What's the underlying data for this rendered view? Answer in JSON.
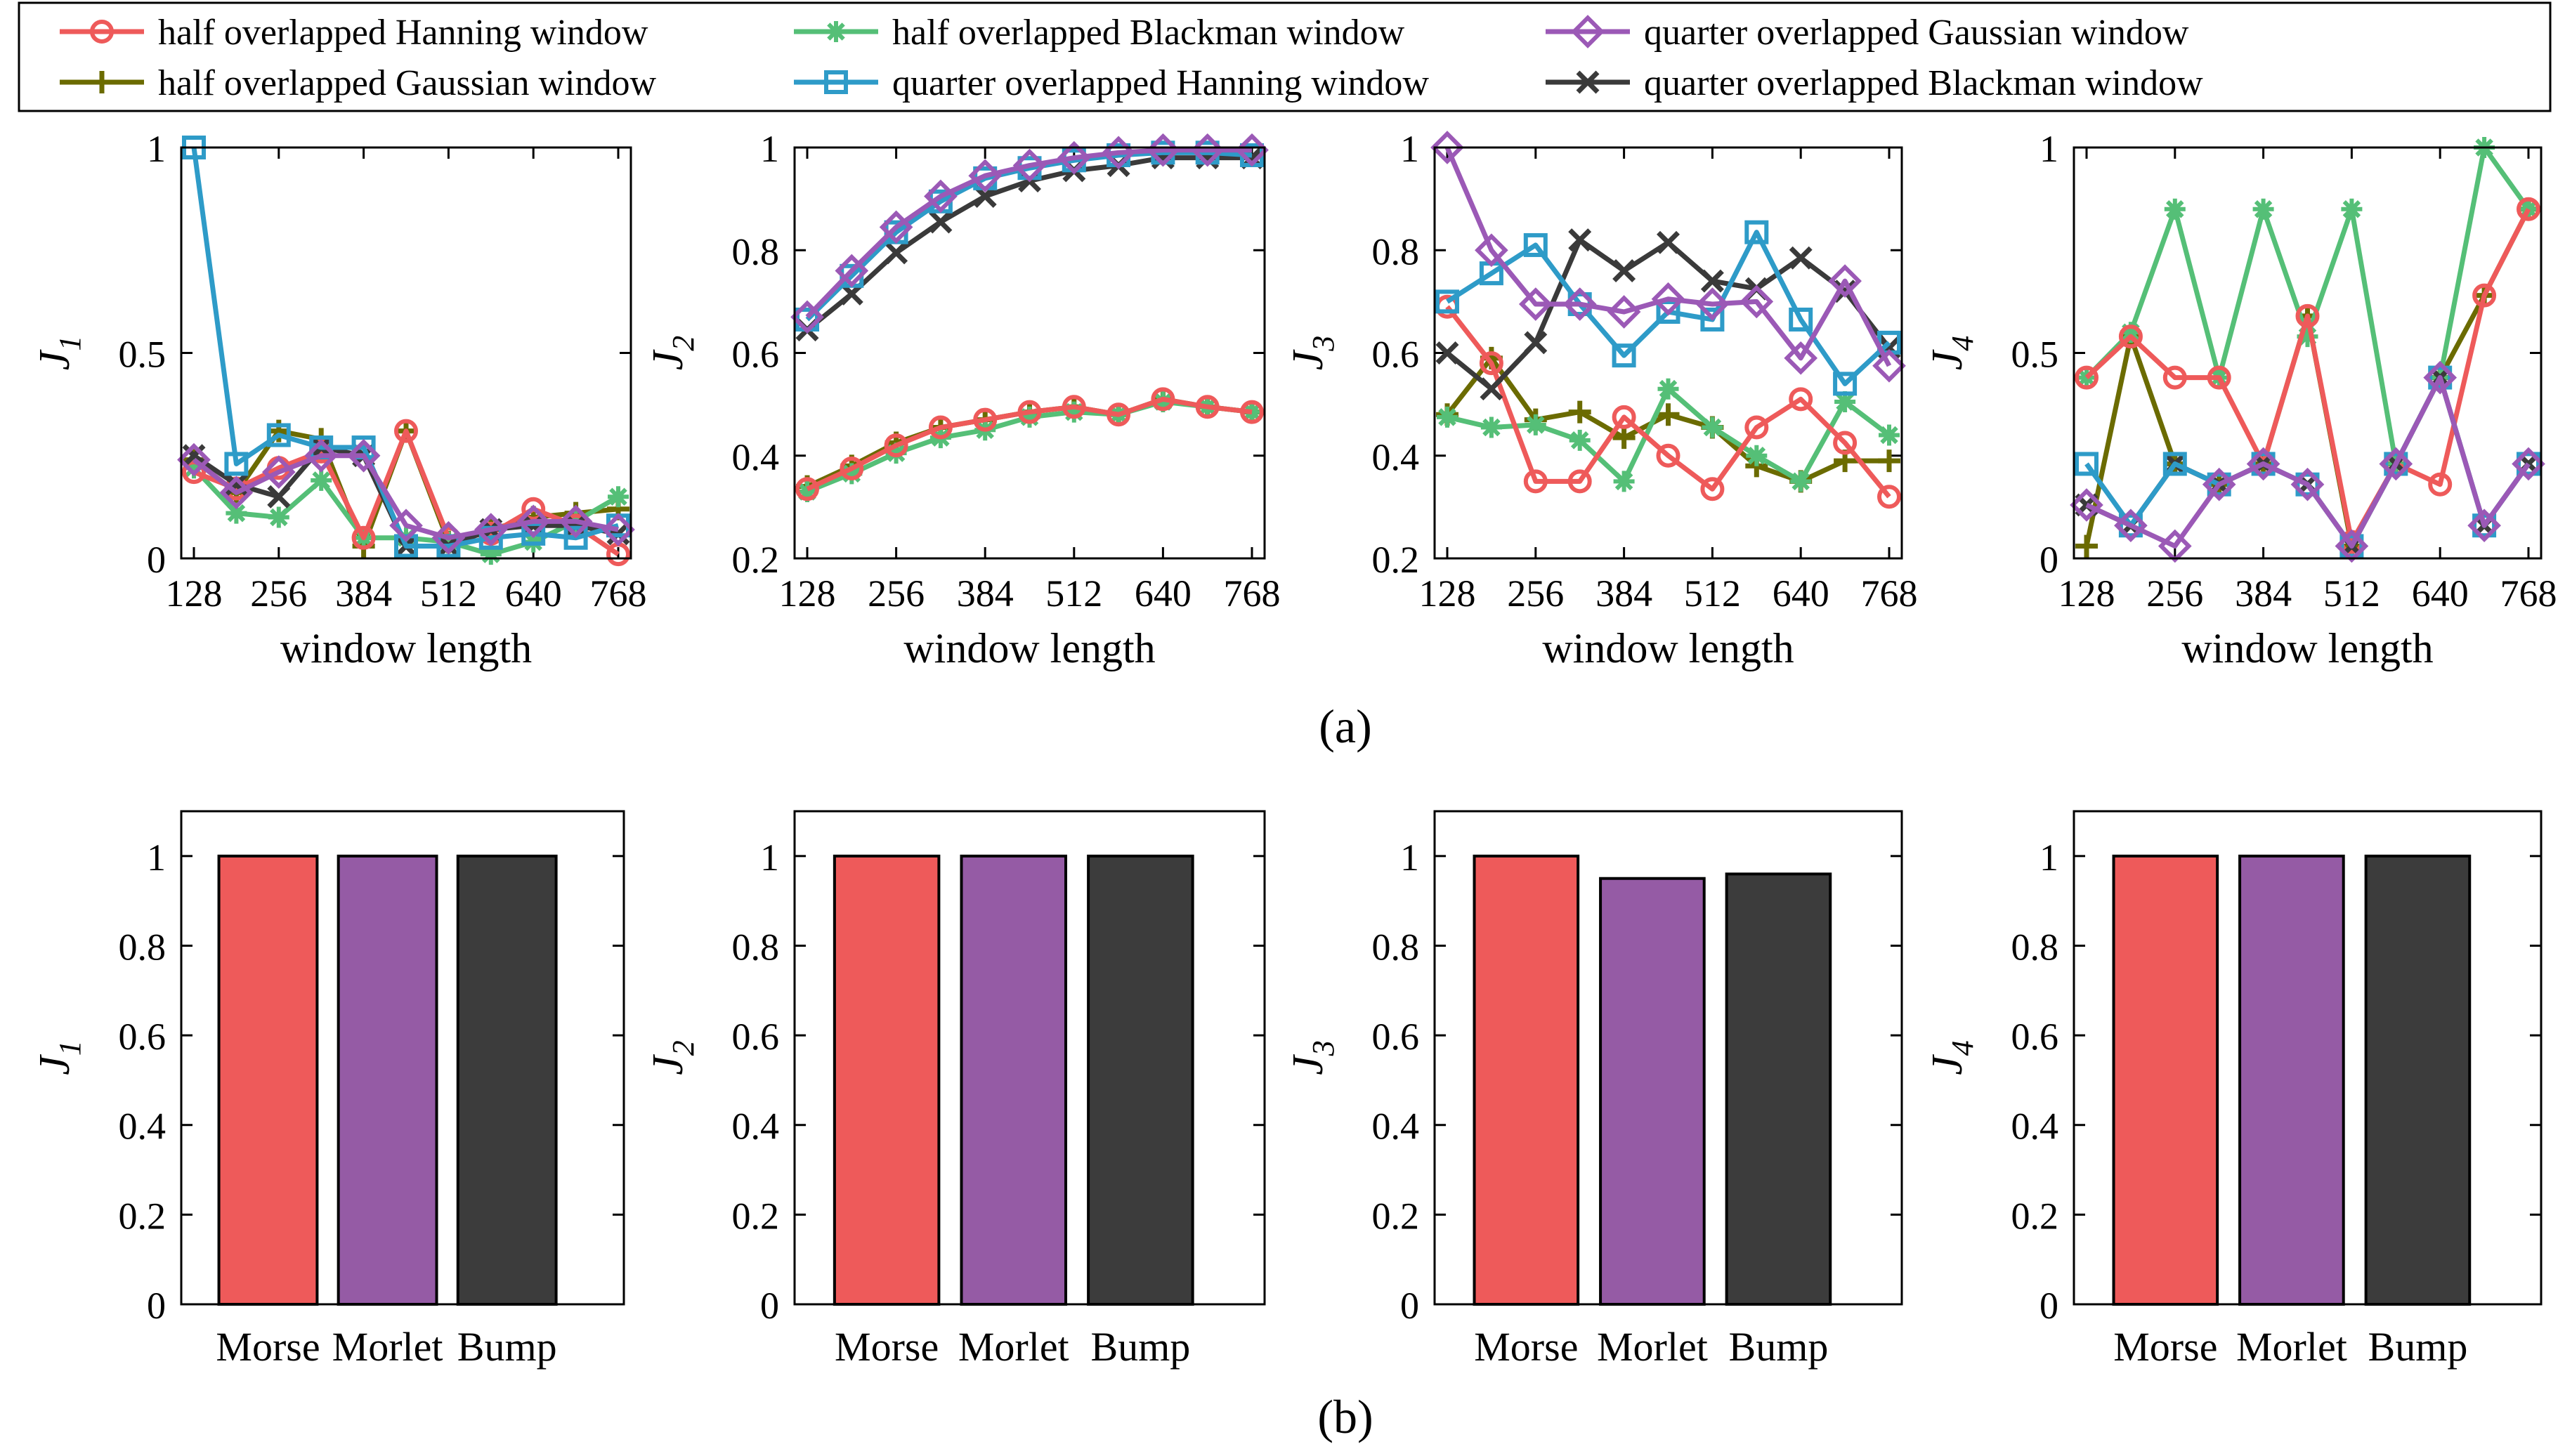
{
  "legend": {
    "entries": [
      {
        "label": "half overlapped Hanning window",
        "color": "#EE5A5A",
        "marker": "circle"
      },
      {
        "label": "half overlapped Blackman window",
        "color": "#55BF77",
        "marker": "asterisk"
      },
      {
        "label": "quarter overlapped Gaussian window",
        "color": "#9B59B6",
        "marker": "diamond"
      },
      {
        "label": "half overlapped Gaussian window",
        "color": "#6B6B00",
        "marker": "plus"
      },
      {
        "label": "quarter overlapped Hanning window",
        "color": "#2E9BC8",
        "marker": "square"
      },
      {
        "label": "quarter overlapped Blackman window",
        "color": "#3A3A3A",
        "marker": "x"
      }
    ]
  },
  "captions": {
    "a": "(a)",
    "b": "(b)"
  },
  "chart_data": [
    {
      "type": "line",
      "title": "",
      "xlabel": "window length",
      "ylabel": "J1",
      "ylabel_main": "J",
      "ylabel_sub": "1",
      "x": [
        128,
        192,
        256,
        320,
        384,
        448,
        512,
        576,
        640,
        704,
        768
      ],
      "xlim": [
        128,
        768
      ],
      "ylim": [
        0,
        1
      ],
      "xticks": [
        "128",
        "256",
        "384",
        "512",
        "640",
        "768"
      ],
      "yticks": [
        "0",
        "0.5",
        "1"
      ],
      "series": [
        {
          "name": "half overlapped Hanning window",
          "values": [
            0.21,
            0.17,
            0.22,
            0.26,
            0.05,
            0.31,
            0.05,
            0.06,
            0.12,
            0.08,
            0.01
          ]
        },
        {
          "name": "half overlapped Blackman window",
          "values": [
            0.22,
            0.11,
            0.1,
            0.19,
            0.05,
            0.05,
            0.04,
            0.01,
            0.04,
            0.09,
            0.15
          ]
        },
        {
          "name": "quarter overlapped Gaussian window",
          "values": [
            0.24,
            0.16,
            0.21,
            0.25,
            0.25,
            0.08,
            0.05,
            0.07,
            0.09,
            0.09,
            0.07
          ]
        },
        {
          "name": "half overlapped Gaussian window",
          "values": [
            0.24,
            0.16,
            0.31,
            0.29,
            0.03,
            0.31,
            0.04,
            0.07,
            0.1,
            0.11,
            0.12
          ]
        },
        {
          "name": "quarter overlapped Hanning window",
          "values": [
            1.0,
            0.23,
            0.3,
            0.27,
            0.27,
            0.03,
            0.03,
            0.05,
            0.06,
            0.05,
            0.08
          ]
        },
        {
          "name": "quarter overlapped Blackman window",
          "values": [
            0.25,
            0.18,
            0.15,
            0.27,
            0.25,
            0.03,
            0.03,
            0.07,
            0.08,
            0.08,
            0.06
          ]
        }
      ]
    },
    {
      "type": "line",
      "title": "",
      "xlabel": "window length",
      "ylabel": "J2",
      "ylabel_main": "J",
      "ylabel_sub": "2",
      "x": [
        128,
        192,
        256,
        320,
        384,
        448,
        512,
        576,
        640,
        704,
        768
      ],
      "xlim": [
        128,
        768
      ],
      "ylim": [
        0.2,
        1
      ],
      "xticks": [
        "128",
        "256",
        "384",
        "512",
        "640",
        "768"
      ],
      "yticks": [
        "0.2",
        "0.4",
        "0.6",
        "0.8",
        "1"
      ],
      "series": [
        {
          "name": "half overlapped Hanning window",
          "values": [
            0.335,
            0.375,
            0.42,
            0.455,
            0.47,
            0.485,
            0.495,
            0.48,
            0.51,
            0.495,
            0.485
          ]
        },
        {
          "name": "half overlapped Blackman window",
          "values": [
            0.33,
            0.365,
            0.405,
            0.435,
            0.45,
            0.475,
            0.485,
            0.48,
            0.505,
            0.495,
            0.485
          ]
        },
        {
          "name": "quarter overlapped Gaussian window",
          "values": [
            0.67,
            0.76,
            0.845,
            0.905,
            0.945,
            0.965,
            0.98,
            0.99,
            0.995,
            0.995,
            0.995
          ]
        },
        {
          "name": "half overlapped Gaussian window",
          "values": [
            0.34,
            0.38,
            0.425,
            0.455,
            0.47,
            0.485,
            0.495,
            0.48,
            0.51,
            0.495,
            0.485
          ]
        },
        {
          "name": "quarter overlapped Hanning window",
          "values": [
            0.665,
            0.75,
            0.835,
            0.895,
            0.94,
            0.96,
            0.975,
            0.985,
            0.99,
            0.99,
            0.985
          ]
        },
        {
          "name": "quarter overlapped Blackman window",
          "values": [
            0.645,
            0.715,
            0.795,
            0.855,
            0.905,
            0.935,
            0.955,
            0.965,
            0.98,
            0.98,
            0.98
          ]
        }
      ]
    },
    {
      "type": "line",
      "title": "",
      "xlabel": "window length",
      "ylabel": "J3",
      "ylabel_main": "J",
      "ylabel_sub": "3",
      "x": [
        128,
        192,
        256,
        320,
        384,
        448,
        512,
        576,
        640,
        704,
        768
      ],
      "xlim": [
        128,
        768
      ],
      "ylim": [
        0.2,
        1
      ],
      "xticks": [
        "128",
        "256",
        "384",
        "512",
        "640",
        "768"
      ],
      "yticks": [
        "0.2",
        "0.4",
        "0.6",
        "0.8",
        "1"
      ],
      "series": [
        {
          "name": "half overlapped Hanning window",
          "values": [
            0.69,
            0.58,
            0.35,
            0.35,
            0.475,
            0.4,
            0.335,
            0.455,
            0.51,
            0.425,
            0.32
          ]
        },
        {
          "name": "half overlapped Blackman window",
          "values": [
            0.475,
            0.455,
            0.46,
            0.43,
            0.35,
            0.53,
            0.455,
            0.4,
            0.35,
            0.505,
            0.44
          ]
        },
        {
          "name": "quarter overlapped Gaussian window",
          "values": [
            1.0,
            0.8,
            0.695,
            0.695,
            0.68,
            0.705,
            0.695,
            0.7,
            0.59,
            0.74,
            0.575
          ]
        },
        {
          "name": "half overlapped Gaussian window",
          "values": [
            0.48,
            0.59,
            0.47,
            0.485,
            0.435,
            0.48,
            0.455,
            0.38,
            0.35,
            0.39,
            0.39
          ]
        },
        {
          "name": "quarter overlapped Hanning window",
          "values": [
            0.7,
            0.755,
            0.81,
            0.695,
            0.595,
            0.68,
            0.665,
            0.835,
            0.665,
            0.54,
            0.62
          ]
        },
        {
          "name": "quarter overlapped Blackman window",
          "values": [
            0.6,
            0.53,
            0.62,
            0.82,
            0.76,
            0.815,
            0.74,
            0.725,
            0.785,
            0.72,
            0.61
          ]
        }
      ]
    },
    {
      "type": "line",
      "title": "",
      "xlabel": "window length",
      "ylabel": "J4",
      "ylabel_main": "J",
      "ylabel_sub": "4",
      "x": [
        128,
        192,
        256,
        320,
        384,
        448,
        512,
        576,
        640,
        704,
        768
      ],
      "xlim": [
        128,
        768
      ],
      "ylim": [
        0,
        1
      ],
      "xticks": [
        "128",
        "256",
        "384",
        "512",
        "640",
        "768"
      ],
      "yticks": [
        "0",
        "0.5",
        "1"
      ],
      "series": [
        {
          "name": "half overlapped Hanning window",
          "values": [
            0.44,
            0.54,
            0.44,
            0.44,
            0.23,
            0.59,
            0.04,
            0.23,
            0.18,
            0.64,
            0.85
          ]
        },
        {
          "name": "half overlapped Blackman window",
          "values": [
            0.44,
            0.55,
            0.85,
            0.44,
            0.85,
            0.54,
            0.85,
            0.23,
            0.44,
            1.0,
            0.85
          ]
        },
        {
          "name": "quarter overlapped Gaussian window",
          "values": [
            0.13,
            0.08,
            0.03,
            0.18,
            0.23,
            0.18,
            0.03,
            0.23,
            0.44,
            0.08,
            0.23
          ]
        },
        {
          "name": "half overlapped Gaussian window",
          "values": [
            0.03,
            0.54,
            0.23,
            0.18,
            0.23,
            0.59,
            0.03,
            0.23,
            0.44,
            0.64,
            0.85
          ]
        },
        {
          "name": "quarter overlapped Hanning window",
          "values": [
            0.23,
            0.08,
            0.23,
            0.18,
            0.23,
            0.18,
            0.03,
            0.23,
            0.44,
            0.08,
            0.23
          ]
        },
        {
          "name": "quarter overlapped Blackman window",
          "values": [
            0.13,
            0.08,
            0.23,
            0.18,
            0.23,
            0.18,
            0.03,
            0.23,
            0.44,
            0.08,
            0.23
          ]
        }
      ]
    },
    {
      "type": "bar",
      "title": "",
      "xlabel": "",
      "ylabel": "J1",
      "ylabel_main": "J",
      "ylabel_sub": "1",
      "categories": [
        "Morse",
        "Morlet",
        "Bump"
      ],
      "values": [
        1.0,
        1.0,
        1.0
      ],
      "bar_colors": [
        "#EE5A5A",
        "#955BA5",
        "#3C3C3C"
      ],
      "ylim": [
        0,
        1.1
      ],
      "yticks": [
        "0",
        "0.2",
        "0.4",
        "0.6",
        "0.8",
        "1"
      ]
    },
    {
      "type": "bar",
      "title": "",
      "xlabel": "",
      "ylabel": "J2",
      "ylabel_main": "J",
      "ylabel_sub": "2",
      "categories": [
        "Morse",
        "Morlet",
        "Bump"
      ],
      "values": [
        1.0,
        1.0,
        1.0
      ],
      "bar_colors": [
        "#EE5A5A",
        "#955BA5",
        "#3C3C3C"
      ],
      "ylim": [
        0,
        1.1
      ],
      "yticks": [
        "0",
        "0.2",
        "0.4",
        "0.6",
        "0.8",
        "1"
      ]
    },
    {
      "type": "bar",
      "title": "",
      "xlabel": "",
      "ylabel": "J3",
      "ylabel_main": "J",
      "ylabel_sub": "3",
      "categories": [
        "Morse",
        "Morlet",
        "Bump"
      ],
      "values": [
        1.0,
        0.95,
        0.96
      ],
      "bar_colors": [
        "#EE5A5A",
        "#955BA5",
        "#3C3C3C"
      ],
      "ylim": [
        0,
        1.1
      ],
      "yticks": [
        "0",
        "0.2",
        "0.4",
        "0.6",
        "0.8",
        "1"
      ]
    },
    {
      "type": "bar",
      "title": "",
      "xlabel": "",
      "ylabel": "J4",
      "ylabel_main": "J",
      "ylabel_sub": "4",
      "categories": [
        "Morse",
        "Morlet",
        "Bump"
      ],
      "values": [
        1.0,
        1.0,
        1.0
      ],
      "bar_colors": [
        "#EE5A5A",
        "#955BA5",
        "#3C3C3C"
      ],
      "ylim": [
        0,
        1.1
      ],
      "yticks": [
        "0",
        "0.2",
        "0.4",
        "0.6",
        "0.8",
        "1"
      ]
    }
  ]
}
